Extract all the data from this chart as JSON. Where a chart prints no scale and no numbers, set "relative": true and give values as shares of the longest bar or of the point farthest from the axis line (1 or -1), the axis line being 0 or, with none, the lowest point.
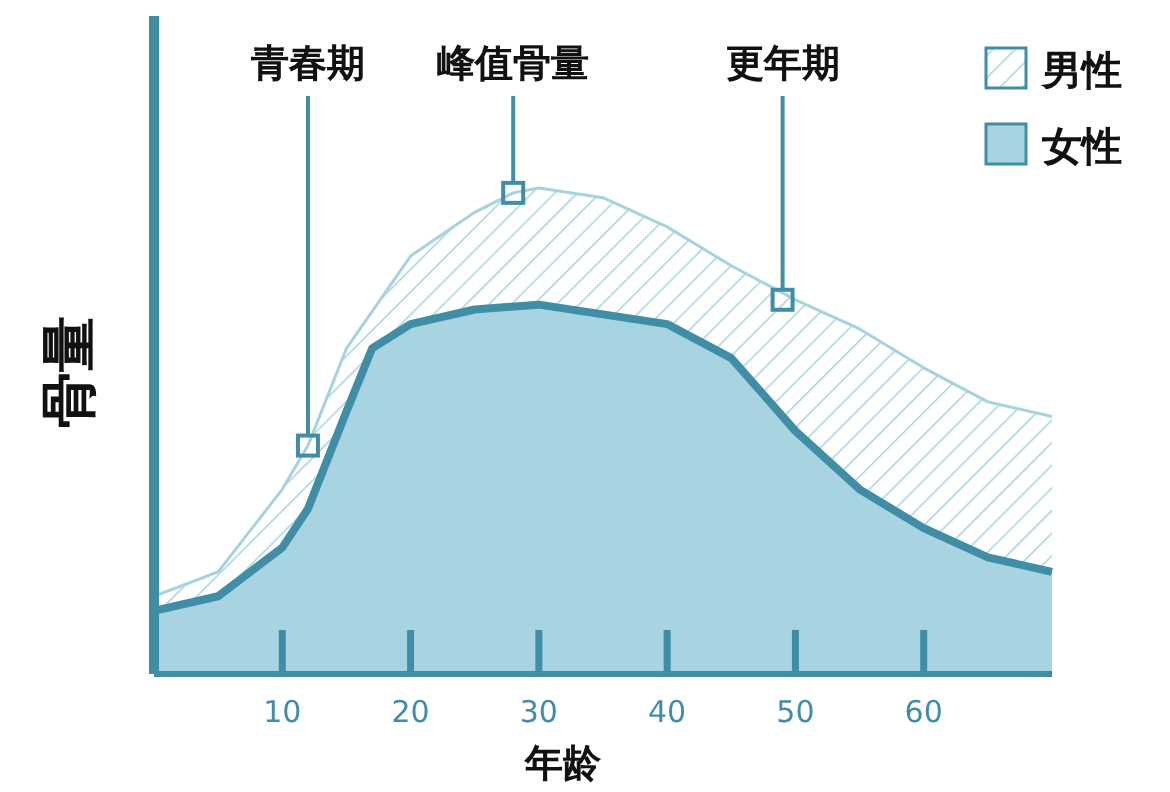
{
  "chart_data": {
    "type": "area",
    "relative": true,
    "xlabel": "年龄",
    "ylabel": "骨量",
    "xlim": [
      0,
      70
    ],
    "xticks": [
      10,
      20,
      30,
      40,
      50,
      60
    ],
    "legend": "top right",
    "series": [
      {
        "name": "男性",
        "color": "#a7d3df",
        "x": [
          0,
          5,
          10,
          12,
          15,
          20,
          25,
          28,
          30,
          35,
          40,
          45,
          50,
          55,
          60,
          65,
          70
        ],
        "values": [
          0.16,
          0.21,
          0.38,
          0.47,
          0.67,
          0.86,
          0.95,
          0.99,
          1,
          0.98,
          0.92,
          0.84,
          0.77,
          0.71,
          0.63,
          0.56,
          0.53
        ]
      },
      {
        "name": "女性",
        "color": "#a8d4e1",
        "x": [
          0,
          5,
          10,
          12,
          15,
          17,
          20,
          25,
          30,
          35,
          40,
          45,
          50,
          55,
          60,
          65,
          70
        ],
        "values": [
          0.13,
          0.16,
          0.26,
          0.34,
          0.54,
          0.67,
          0.72,
          0.75,
          0.76,
          0.74,
          0.72,
          0.65,
          0.5,
          0.38,
          0.3,
          0.24,
          0.21
        ]
      }
    ],
    "annotations": [
      {
        "text": "青春期",
        "x": 12,
        "y": 0.47
      },
      {
        "text": "峰值骨量",
        "x": 28,
        "y": 0.99
      },
      {
        "text": "更年期",
        "x": 49,
        "y": 0.77
      }
    ]
  }
}
